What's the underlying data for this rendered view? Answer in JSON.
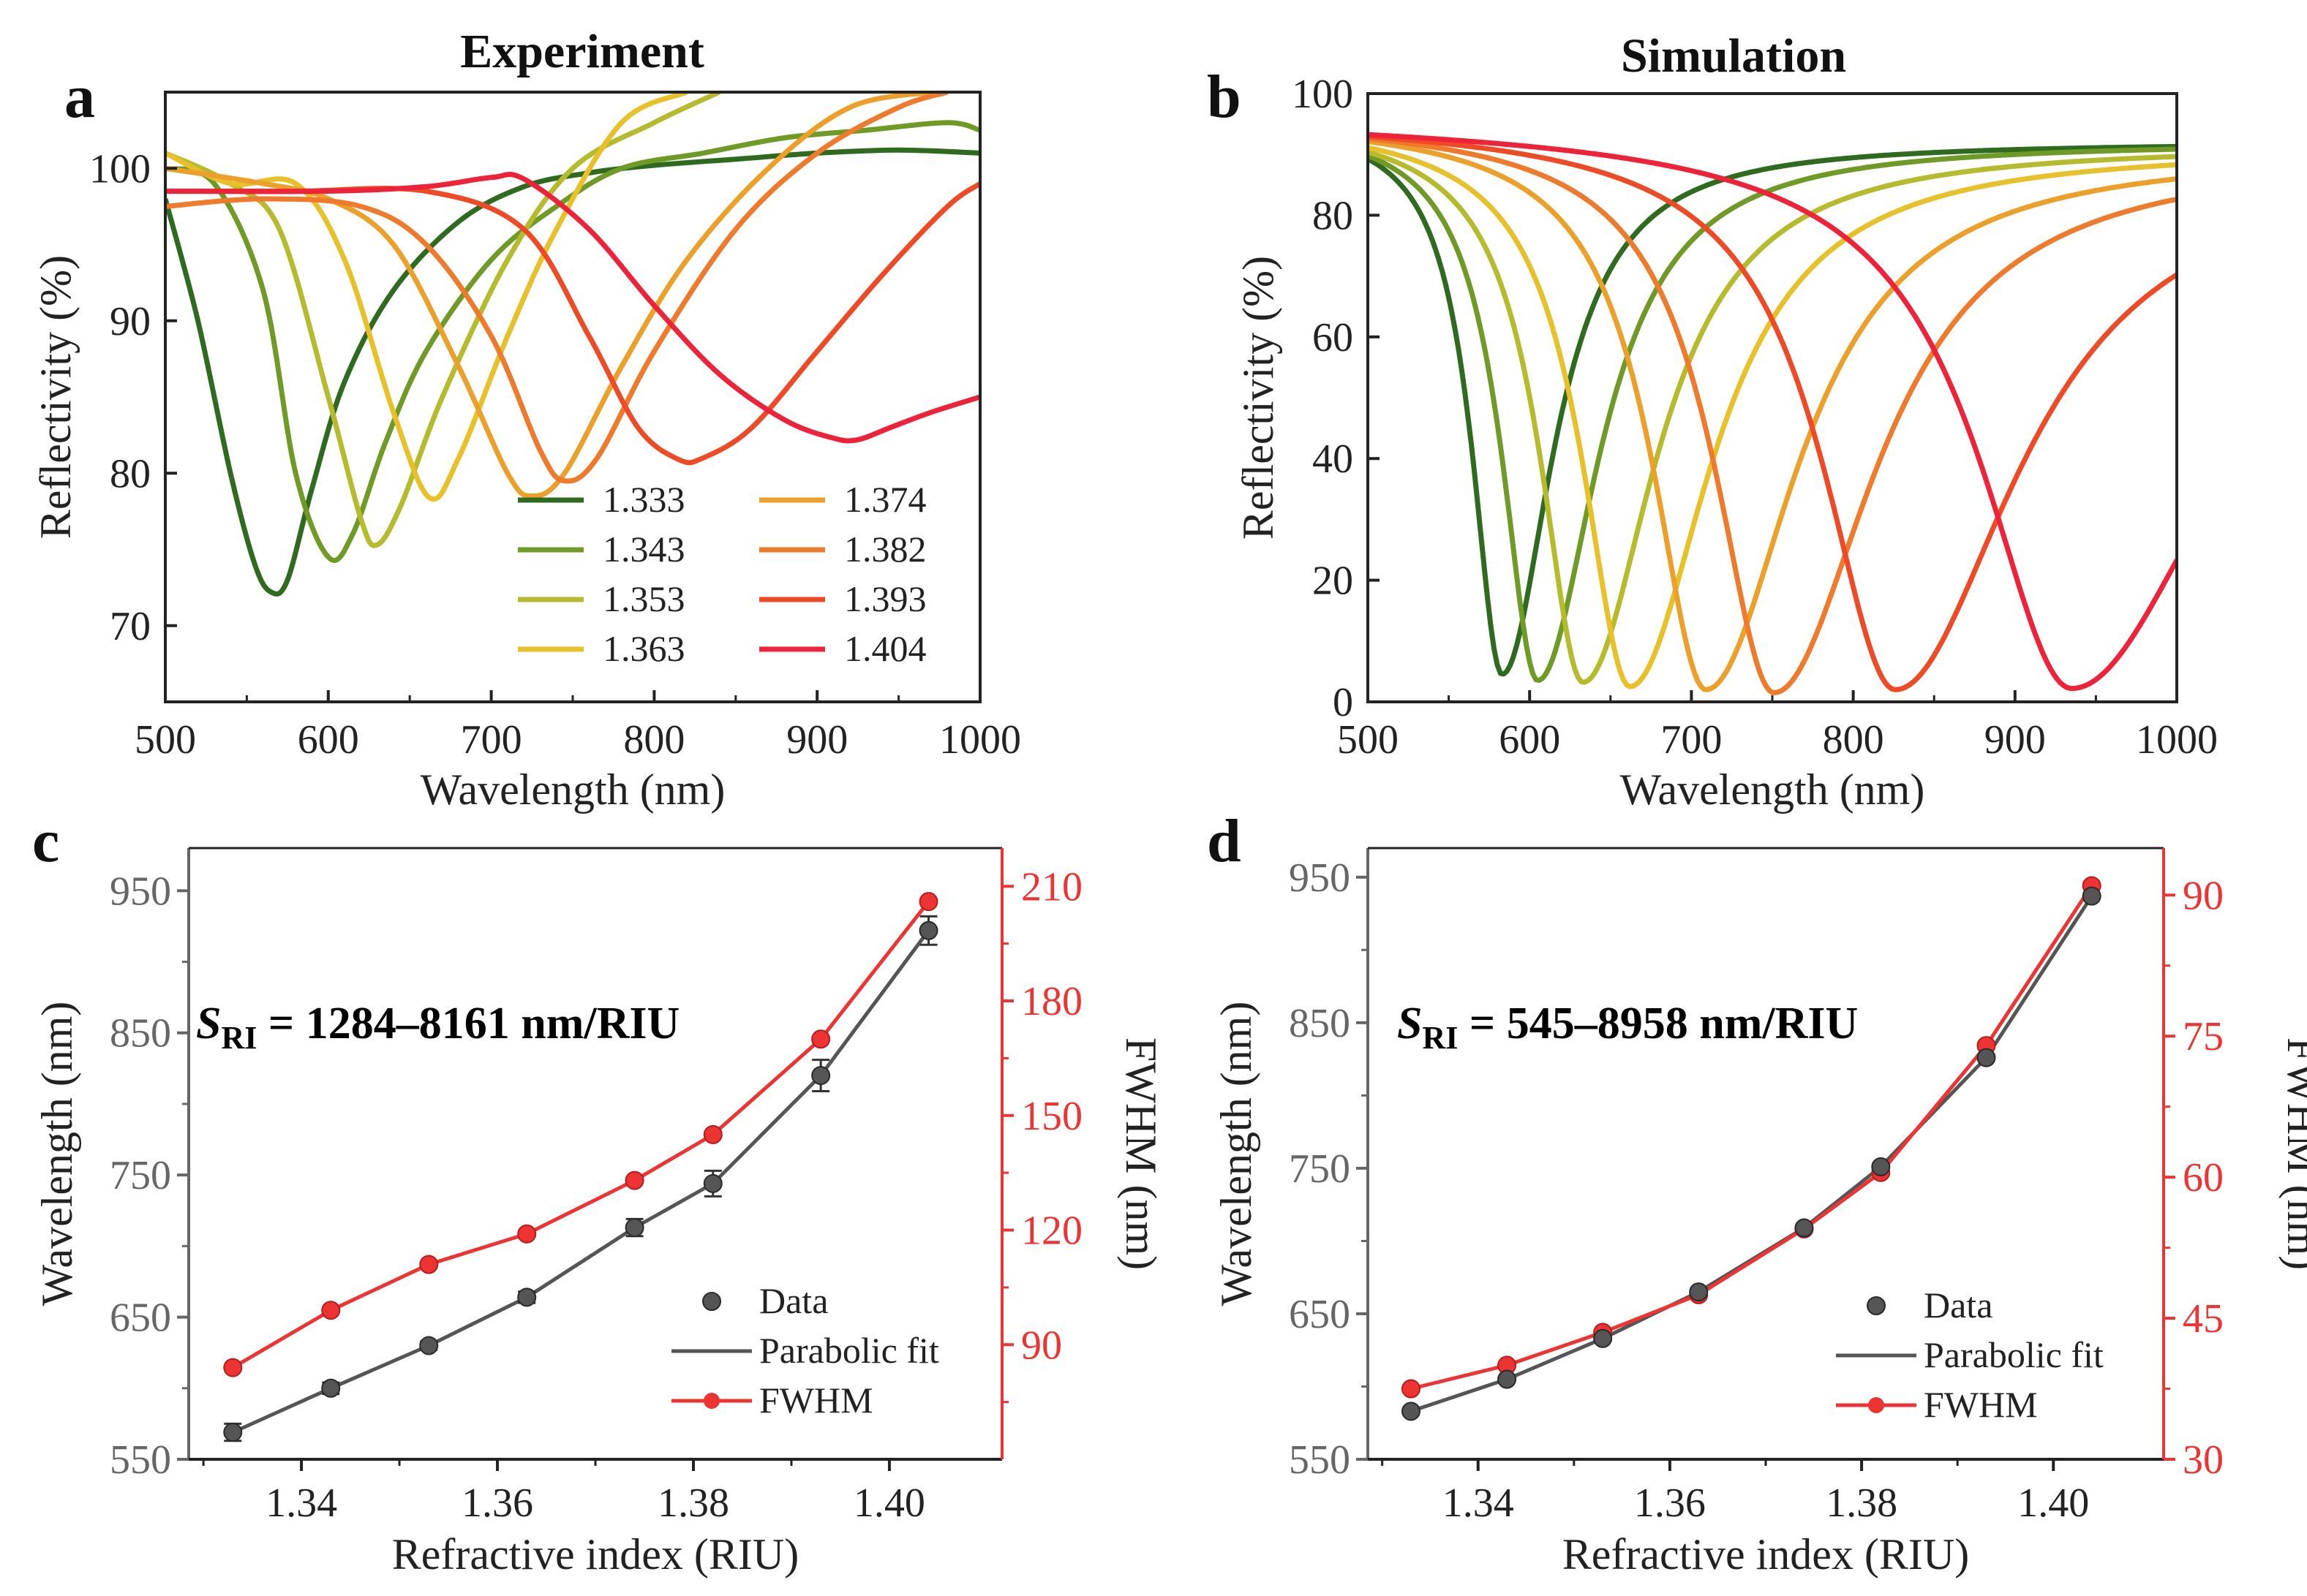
{
  "panels": {
    "a": {
      "label": "a",
      "title": "Experiment"
    },
    "b": {
      "label": "b",
      "title": "Simulation"
    },
    "c": {
      "label": "c"
    },
    "d": {
      "label": "d"
    }
  },
  "annotations": {
    "c": {
      "s": "S",
      "sub": "RI",
      "text": " = 1284–8161 nm/RIU"
    },
    "d": {
      "s": "S",
      "sub": "RI",
      "text": " = 545–8958 nm/RIU"
    }
  },
  "colors": {
    "series": [
      "#2f6b1f",
      "#6e9a25",
      "#b5bb2c",
      "#e8c02a",
      "#eca029",
      "#ef7a2b",
      "#ef4a26",
      "#ee2238"
    ],
    "fwhm": "#ee3333",
    "data": "#555555",
    "fit": "#555555",
    "axis_left": "#666666",
    "axis_right": "#ee3333"
  },
  "chart_data": [
    {
      "id": "a",
      "type": "line",
      "title": "Experiment",
      "xlabel": "Wavelength (nm)",
      "ylabel": "Reflectivity (%)",
      "xlim": [
        500,
        1000
      ],
      "ylim": [
        65,
        105
      ],
      "xticks": [
        500,
        600,
        700,
        800,
        900,
        1000
      ],
      "yticks": [
        70,
        80,
        90,
        100
      ],
      "legend_cols": 2,
      "series": [
        {
          "name": "1.333",
          "x": [
            500,
            520,
            540,
            555,
            565,
            575,
            590,
            610,
            640,
            680,
            720,
            760,
            800,
            850,
            900,
            950,
            1000
          ],
          "y": [
            98,
            90,
            80,
            74,
            72.2,
            73,
            79,
            86,
            92,
            96.5,
            98.8,
            99.7,
            100.2,
            100.6,
            101,
            101.2,
            101
          ]
        },
        {
          "name": "1.343",
          "x": [
            500,
            530,
            560,
            580,
            600,
            615,
            635,
            660,
            700,
            740,
            780,
            830,
            880,
            930,
            980,
            1000
          ],
          "y": [
            100,
            99,
            92,
            80,
            74.5,
            76,
            82,
            88,
            94,
            97.5,
            100,
            101,
            102,
            102.5,
            103,
            102.5
          ]
        },
        {
          "name": "1.353",
          "x": [
            500,
            540,
            570,
            600,
            620,
            630,
            645,
            670,
            710,
            750,
            800,
            840
          ],
          "y": [
            101,
            99,
            96,
            85,
            77,
            75.3,
            78,
            85,
            94,
            100,
            103,
            105
          ]
        },
        {
          "name": "1.363",
          "x": [
            500,
            540,
            580,
            610,
            640,
            662,
            680,
            710,
            740,
            780,
            820
          ],
          "y": [
            101,
            99,
            99,
            94,
            84,
            78.4,
            81,
            89,
            96,
            103,
            105
          ]
        },
        {
          "name": "1.374",
          "x": [
            500,
            560,
            600,
            640,
            680,
            710,
            725,
            745,
            780,
            820,
            870,
            920,
            970
          ],
          "y": [
            100,
            99,
            98,
            95,
            87,
            80,
            78.5,
            80,
            87,
            94,
            100,
            104,
            105
          ]
        },
        {
          "name": "1.382",
          "x": [
            500,
            560,
            620,
            660,
            700,
            730,
            745,
            765,
            800,
            850,
            900,
            950,
            980
          ],
          "y": [
            97.5,
            98,
            97.5,
            95,
            89,
            81.5,
            79.5,
            81,
            88,
            96,
            101,
            104,
            105
          ]
        },
        {
          "name": "1.393",
          "x": [
            500,
            580,
            660,
            720,
            760,
            790,
            815,
            830,
            860,
            900,
            940,
            980,
            1000
          ],
          "y": [
            98.5,
            98.5,
            98.5,
            96,
            89,
            83,
            80.9,
            81,
            83,
            88,
            93,
            97.5,
            99
          ]
        },
        {
          "name": "1.404",
          "x": [
            500,
            600,
            660,
            700,
            720,
            760,
            800,
            840,
            880,
            910,
            925,
            945,
            970,
            1000
          ],
          "y": [
            98.5,
            98.5,
            98.8,
            99.4,
            99.3,
            96,
            91,
            86.5,
            83.5,
            82.3,
            82.2,
            83,
            84,
            85
          ]
        }
      ]
    },
    {
      "id": "b",
      "type": "line",
      "title": "Simulation",
      "xlabel": "Wavelength (nm)",
      "ylabel": "Reflectivity (%)",
      "xlim": [
        500,
        1000
      ],
      "ylim": [
        0,
        100
      ],
      "xticks": [
        500,
        600,
        700,
        800,
        900,
        1000
      ],
      "yticks": [
        0,
        20,
        40,
        60,
        80,
        100
      ],
      "series": [
        {
          "name": "1.333",
          "dip": 583,
          "min": 4.5,
          "width": 30,
          "base": 92
        },
        {
          "name": "1.343",
          "dip": 605,
          "min": 3.5,
          "width": 36,
          "base": 92
        },
        {
          "name": "1.353",
          "dip": 633,
          "min": 3.2,
          "width": 43,
          "base": 91.5
        },
        {
          "name": "1.363",
          "dip": 662,
          "min": 2.5,
          "width": 48,
          "base": 91
        },
        {
          "name": "1.374",
          "dip": 709,
          "min": 2,
          "width": 54,
          "base": 90.5
        },
        {
          "name": "1.382",
          "dip": 751,
          "min": 1.5,
          "width": 60,
          "base": 90
        },
        {
          "name": "1.393",
          "dip": 826,
          "min": 2,
          "width": 73,
          "base": 89
        },
        {
          "name": "1.404",
          "dip": 935,
          "min": 2.2,
          "width": 91,
          "base": 88
        }
      ]
    },
    {
      "id": "c",
      "type": "line",
      "xlabel": "Refractive index (RIU)",
      "ylabel": "Wavelength (nm)",
      "ylabel_right": "FWHM (nm)",
      "xlim": [
        1.3285,
        1.4115
      ],
      "ylim": [
        550,
        980
      ],
      "ylim_right": [
        60,
        220
      ],
      "xticks": [
        "1.34",
        "1.36",
        "1.38",
        "1.40"
      ],
      "yticks": [
        550,
        650,
        750,
        850,
        950
      ],
      "yticks_right": [
        90,
        120,
        150,
        180,
        210
      ],
      "x": [
        1.333,
        1.343,
        1.353,
        1.363,
        1.374,
        1.382,
        1.393,
        1.404
      ],
      "series": [
        {
          "name": "Data",
          "values": [
            569,
            600,
            630,
            664,
            713,
            744,
            820,
            922
          ],
          "errors": [
            6,
            4,
            3,
            4,
            6,
            9,
            11,
            10
          ]
        },
        {
          "name": "Parabolic fit",
          "values": [
            569,
            600,
            630,
            664,
            713,
            744,
            820,
            922
          ]
        },
        {
          "name": "FWHM",
          "values": [
            84,
            99,
            111,
            119,
            133,
            145,
            170,
            206
          ]
        }
      ],
      "legend": [
        "Data",
        "Parabolic fit",
        "FWHM"
      ]
    },
    {
      "id": "d",
      "type": "line",
      "xlabel": "Refractive index (RIU)",
      "ylabel": "Wavelength (nm)",
      "ylabel_right": "FWHM (nm)",
      "xlim": [
        1.3285,
        1.4115
      ],
      "ylim": [
        550,
        970
      ],
      "ylim_right": [
        30,
        95
      ],
      "xticks": [
        "1.34",
        "1.36",
        "1.38",
        "1.40"
      ],
      "yticks": [
        550,
        650,
        750,
        850,
        950
      ],
      "yticks_right": [
        30,
        45,
        60,
        75,
        90
      ],
      "x": [
        1.333,
        1.343,
        1.353,
        1.363,
        1.374,
        1.382,
        1.393,
        1.404
      ],
      "series": [
        {
          "name": "Data",
          "values": [
            583,
            605,
            633,
            665,
            709,
            751,
            826,
            937
          ]
        },
        {
          "name": "Parabolic fit",
          "values": [
            583,
            605,
            633,
            665,
            709,
            751,
            826,
            937
          ]
        },
        {
          "name": "FWHM",
          "values": [
            37.5,
            40,
            43.5,
            47.5,
            54.5,
            60.5,
            74,
            91
          ]
        }
      ],
      "legend": [
        "Data",
        "Parabolic fit",
        "FWHM"
      ]
    }
  ]
}
